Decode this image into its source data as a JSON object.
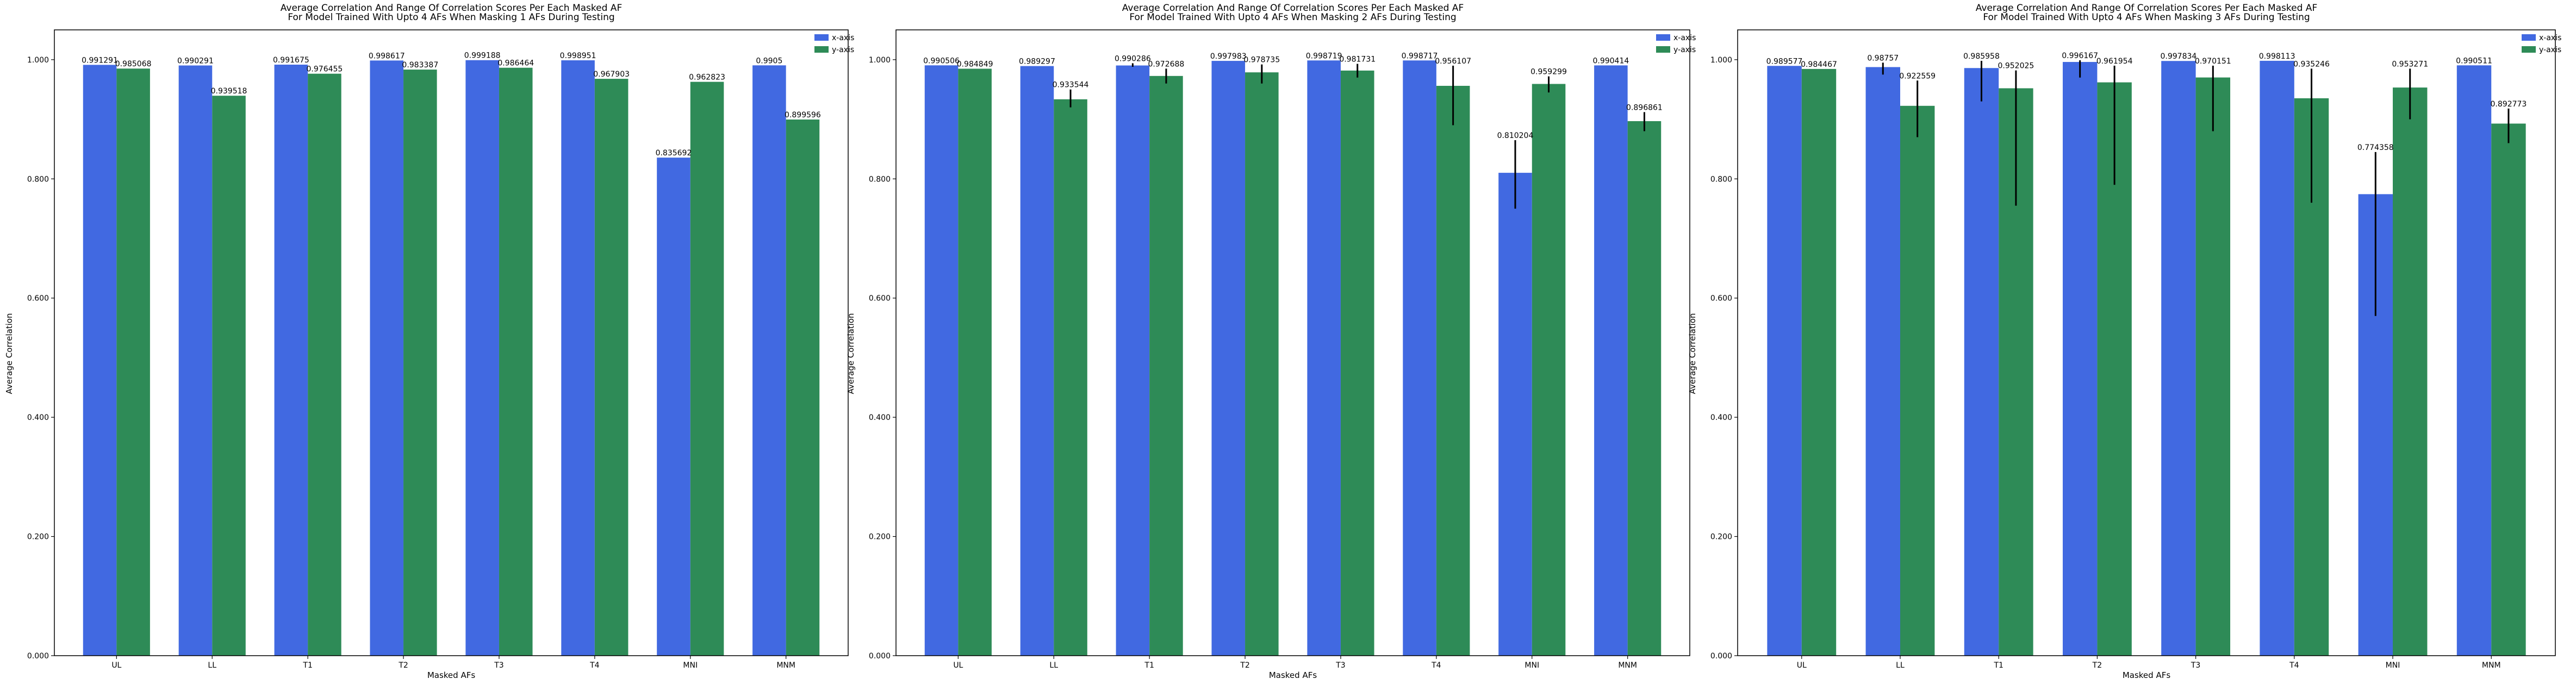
{
  "chart_data": [
    {
      "type": "bar",
      "title_lines": [
        "Average Correlation And Range Of Correlation Scores Per Each Masked AF",
        "For Model Trained With Upto 4 AFs When Masking 1 AFs During Testing"
      ],
      "xlabel": "Masked AFs",
      "ylabel": "Average Correlation",
      "categories": [
        "UL",
        "LL",
        "T1",
        "T2",
        "T3",
        "T4",
        "MNI",
        "MNM"
      ],
      "ylim": [
        0,
        1.05
      ],
      "yticks": [
        "0.000",
        "0.200",
        "0.400",
        "0.600",
        "0.800",
        "1.000"
      ],
      "grid": false,
      "legend_position": "top-right",
      "series": [
        {
          "name": "x-axis",
          "color": "#4169e1",
          "values": [
            0.991291,
            0.990291,
            0.991675,
            0.998617,
            0.999188,
            0.998951,
            0.835692,
            0.9905
          ],
          "labels": [
            "0.991291",
            "0.990291",
            "0.991675",
            "0.998617",
            "0.999188",
            "0.998951",
            "0.835692",
            "0.9905"
          ],
          "err_low": [
            0.991291,
            0.990291,
            0.991675,
            0.998617,
            0.999188,
            0.998951,
            0.835692,
            0.9905
          ],
          "err_high": [
            0.991291,
            0.990291,
            0.991675,
            0.998617,
            0.999188,
            0.998951,
            0.835692,
            0.9905
          ]
        },
        {
          "name": "y-axis",
          "color": "#2e8b57",
          "values": [
            0.985068,
            0.939518,
            0.976455,
            0.983387,
            0.986464,
            0.967903,
            0.962823,
            0.899596
          ],
          "labels": [
            "0.985068",
            "0.939518",
            "0.976455",
            "0.983387",
            "0.986464",
            "0.967903",
            "0.962823",
            "0.899596"
          ],
          "err_low": [
            0.985068,
            0.939518,
            0.976455,
            0.983387,
            0.986464,
            0.967903,
            0.962823,
            0.899596
          ],
          "err_high": [
            0.985068,
            0.939518,
            0.976455,
            0.983387,
            0.986464,
            0.967903,
            0.962823,
            0.899596
          ]
        }
      ]
    },
    {
      "type": "bar",
      "title_lines": [
        "Average Correlation And Range Of Correlation Scores Per Each Masked AF",
        "For Model Trained With Upto 4 AFs When Masking 2 AFs During Testing"
      ],
      "xlabel": "Masked AFs",
      "ylabel": "Average Correlation",
      "categories": [
        "UL",
        "LL",
        "T1",
        "T2",
        "T3",
        "T4",
        "MNI",
        "MNM"
      ],
      "ylim": [
        0,
        1.05
      ],
      "yticks": [
        "0.000",
        "0.200",
        "0.400",
        "0.600",
        "0.800",
        "1.000"
      ],
      "grid": false,
      "legend_position": "top-right",
      "series": [
        {
          "name": "x-axis",
          "color": "#4169e1",
          "values": [
            0.990506,
            0.989297,
            0.990286,
            0.997983,
            0.998719,
            0.998717,
            0.810204,
            0.990414
          ],
          "labels": [
            "0.990506",
            "0.989297",
            "0.990286",
            "0.997983",
            "0.998719",
            "0.998717",
            "0.810204",
            "0.990414"
          ],
          "err_low": [
            0.990506,
            0.989297,
            0.988,
            0.997983,
            0.998719,
            0.998717,
            0.75,
            0.990414
          ],
          "err_high": [
            0.990506,
            0.989297,
            0.994,
            0.997983,
            0.998719,
            0.998717,
            0.865,
            0.990414
          ]
        },
        {
          "name": "y-axis",
          "color": "#2e8b57",
          "values": [
            0.984849,
            0.933544,
            0.972688,
            0.978735,
            0.981731,
            0.956107,
            0.959299,
            0.896861
          ],
          "labels": [
            "0.984849",
            "0.933544",
            "0.972688",
            "0.978735",
            "0.981731",
            "0.956107",
            "0.959299",
            "0.896861"
          ],
          "err_low": [
            0.984849,
            0.92,
            0.96,
            0.96,
            0.97,
            0.89,
            0.945,
            0.88
          ],
          "err_high": [
            0.984849,
            0.95,
            0.985,
            0.992,
            0.993,
            0.99,
            0.972,
            0.912
          ]
        }
      ]
    },
    {
      "type": "bar",
      "title_lines": [
        "Average Correlation And Range Of Correlation Scores Per Each Masked AF",
        "For Model Trained With Upto 4 AFs When Masking 3 AFs During Testing"
      ],
      "xlabel": "Masked AFs",
      "ylabel": "Average Correlation",
      "categories": [
        "UL",
        "LL",
        "T1",
        "T2",
        "T3",
        "T4",
        "MNI",
        "MNM"
      ],
      "ylim": [
        0,
        1.05
      ],
      "yticks": [
        "0.000",
        "0.200",
        "0.400",
        "0.600",
        "0.800",
        "1.000"
      ],
      "grid": false,
      "legend_position": "top-right",
      "series": [
        {
          "name": "x-axis",
          "color": "#4169e1",
          "values": [
            0.989577,
            0.98757,
            0.985958,
            0.996167,
            0.997834,
            0.998113,
            0.774358,
            0.990511
          ],
          "labels": [
            "0.989577",
            "0.98757",
            "0.985958",
            "0.996167",
            "0.997834",
            "0.998113",
            "0.774358",
            "0.990511"
          ],
          "err_low": [
            0.989577,
            0.975,
            0.93,
            0.97,
            0.998,
            0.998,
            0.57,
            0.990511
          ],
          "err_high": [
            0.989577,
            0.995,
            0.998,
            0.999,
            0.998,
            0.998,
            0.845,
            0.990511
          ]
        },
        {
          "name": "y-axis",
          "color": "#2e8b57",
          "values": [
            0.984467,
            0.922559,
            0.952025,
            0.961954,
            0.970151,
            0.935246,
            0.953271,
            0.892773
          ],
          "labels": [
            "0.984467",
            "0.922559",
            "0.952025",
            "0.961954",
            "0.970151",
            "0.935246",
            "0.953271",
            "0.892773"
          ],
          "err_low": [
            0.984467,
            0.87,
            0.755,
            0.79,
            0.88,
            0.76,
            0.9,
            0.86
          ],
          "err_high": [
            0.984467,
            0.965,
            0.982,
            0.99,
            0.99,
            0.985,
            0.985,
            0.918
          ]
        }
      ]
    }
  ]
}
